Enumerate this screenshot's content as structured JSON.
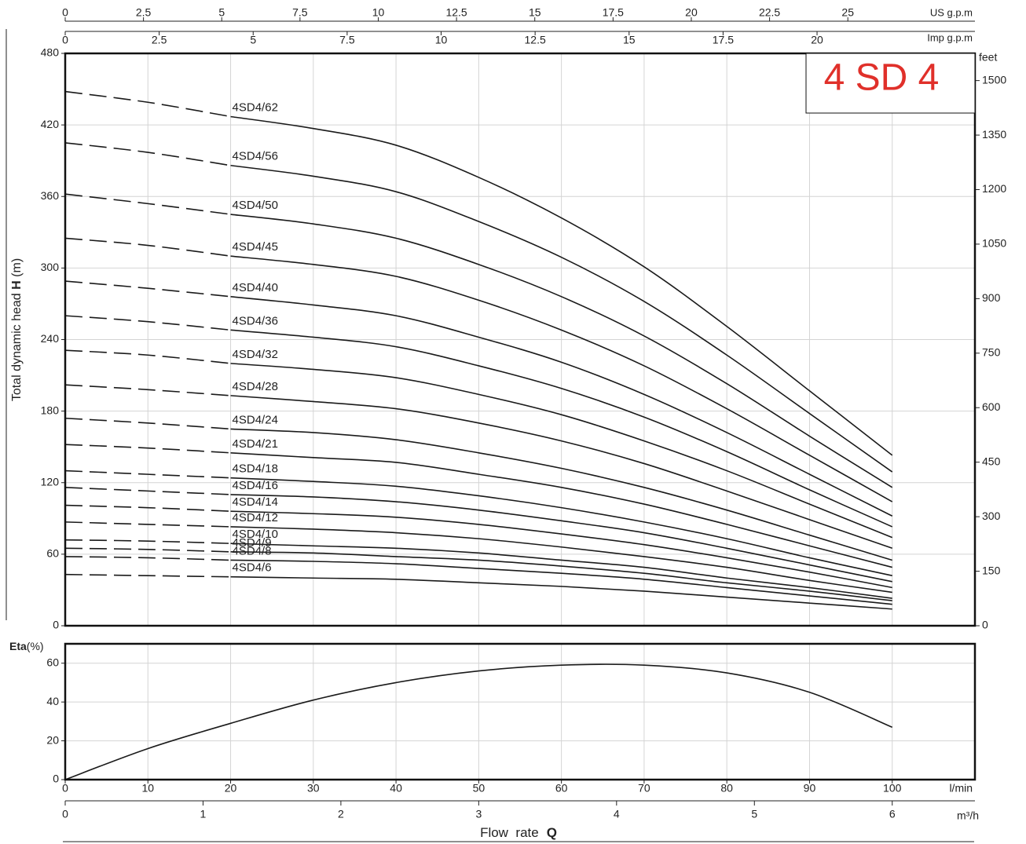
{
  "chart_data": [
    {
      "type": "line",
      "title": "4 SD 4",
      "y_label": [
        "Total dynamic head ",
        "H",
        " (m)"
      ],
      "x": [
        0,
        10,
        20,
        30,
        40,
        50,
        60,
        70,
        80,
        90,
        100
      ],
      "xlim": [
        0,
        110
      ],
      "ylim": [
        0,
        480
      ],
      "yticks": [
        0,
        60,
        120,
        180,
        240,
        300,
        360,
        420,
        480
      ],
      "y2_label": "feet",
      "y2lim": [
        0,
        1574.8
      ],
      "y2ticks": [
        0,
        150,
        300,
        450,
        600,
        750,
        900,
        1050,
        1200,
        1350,
        1500
      ],
      "top_axes": [
        {
          "label": "US g.p.m",
          "lim": [
            0,
            29.06
          ],
          "ticks": [
            0,
            2.5,
            5,
            7.5,
            10,
            12.5,
            15,
            17.5,
            20,
            22.5,
            25
          ]
        },
        {
          "label": "Imp g.p.m",
          "lim": [
            0,
            24.2
          ],
          "ticks": [
            0,
            2.5,
            5,
            7.5,
            10,
            12.5,
            15,
            17.5,
            20
          ]
        }
      ],
      "dash_below_x": 20,
      "grid": true,
      "series": [
        {
          "name": "4SD4/62",
          "color": "#1a1a1a",
          "values": [
            448,
            439,
            427,
            417,
            403,
            376,
            342,
            301,
            251,
            197,
            143
          ]
        },
        {
          "name": "4SD4/56",
          "color": "#1a1a1a",
          "values": [
            405,
            397,
            386,
            377,
            364,
            339,
            309,
            272,
            227,
            178,
            129
          ]
        },
        {
          "name": "4SD4/50",
          "color": "#1a1a1a",
          "values": [
            362,
            354,
            345,
            337,
            325,
            303,
            276,
            243,
            203,
            159,
            116
          ]
        },
        {
          "name": "4SD4/45",
          "color": "#1a1a1a",
          "values": [
            325,
            319,
            310,
            303,
            293,
            273,
            248,
            218,
            182,
            143,
            104
          ]
        },
        {
          "name": "4SD4/40",
          "color": "#1a1a1a",
          "values": [
            289,
            283,
            276,
            269,
            260,
            242,
            221,
            194,
            162,
            127,
            92
          ]
        },
        {
          "name": "4SD4/36",
          "color": "#1a1a1a",
          "values": [
            260,
            255,
            248,
            242,
            234,
            218,
            199,
            175,
            146,
            114,
            83
          ]
        },
        {
          "name": "4SD4/32",
          "color": "#1a1a1a",
          "values": [
            231,
            227,
            220,
            215,
            208,
            194,
            177,
            155,
            130,
            102,
            74
          ]
        },
        {
          "name": "4SD4/28",
          "color": "#1a1a1a",
          "values": [
            202,
            198,
            193,
            188,
            182,
            170,
            155,
            136,
            113,
            89,
            65
          ]
        },
        {
          "name": "4SD4/24",
          "color": "#1a1a1a",
          "values": [
            174,
            170,
            165,
            162,
            156,
            145,
            132,
            116,
            97,
            76,
            55
          ]
        },
        {
          "name": "4SD4/21",
          "color": "#1a1a1a",
          "values": [
            152,
            149,
            145,
            141,
            137,
            127,
            116,
            102,
            85,
            67,
            49
          ]
        },
        {
          "name": "4SD4/18",
          "color": "#1a1a1a",
          "values": [
            130,
            127,
            124,
            121,
            117,
            109,
            99,
            87,
            73,
            57,
            42
          ]
        },
        {
          "name": "4SD4/16",
          "color": "#1a1a1a",
          "values": [
            116,
            113,
            110,
            108,
            104,
            97,
            88,
            78,
            65,
            51,
            37
          ]
        },
        {
          "name": "4SD4/14",
          "color": "#1a1a1a",
          "values": [
            101,
            99,
            96,
            94,
            91,
            85,
            77,
            68,
            57,
            45,
            32
          ]
        },
        {
          "name": "4SD4/12",
          "color": "#1a1a1a",
          "values": [
            87,
            85,
            83,
            81,
            78,
            73,
            66,
            58,
            49,
            38,
            28
          ]
        },
        {
          "name": "4SD4/10",
          "color": "#1a1a1a",
          "values": [
            72,
            71,
            69,
            67,
            65,
            61,
            55,
            49,
            40,
            32,
            23
          ]
        },
        {
          "name": "4SD4/9",
          "color": "#1a1a1a",
          "values": [
            65,
            64,
            62,
            61,
            58,
            55,
            50,
            44,
            36,
            29,
            21
          ]
        },
        {
          "name": "4SD4/8",
          "color": "#1a1a1a",
          "values": [
            58,
            57,
            55,
            54,
            52,
            48,
            44,
            39,
            32,
            25,
            18
          ]
        },
        {
          "name": "4SD4/6",
          "color": "#1a1a1a",
          "values": [
            43,
            42,
            41,
            40,
            39,
            36,
            33,
            29,
            24,
            19,
            14
          ]
        }
      ]
    },
    {
      "type": "line",
      "y_label": [
        "Eta",
        "(%)"
      ],
      "x": [
        0,
        10,
        20,
        30,
        40,
        50,
        60,
        70,
        80,
        90,
        100
      ],
      "values": [
        0,
        16,
        29,
        41,
        50,
        56,
        59,
        59,
        55,
        45,
        27
      ],
      "color": "#1a1a1a",
      "xlim": [
        0,
        110
      ],
      "xticks": [
        0,
        10,
        20,
        30,
        40,
        50,
        60,
        70,
        80,
        90,
        100
      ],
      "x_label": "l/min",
      "ylim": [
        0,
        70
      ],
      "yticks": [
        0,
        20,
        40,
        60
      ],
      "grid": true,
      "x2_label": "m³/h",
      "x2lim": [
        0,
        6.6
      ],
      "x2ticks": [
        0,
        1,
        2,
        3,
        4,
        5,
        6
      ],
      "x_title": [
        "Flow  rate",
        "Q"
      ]
    }
  ]
}
